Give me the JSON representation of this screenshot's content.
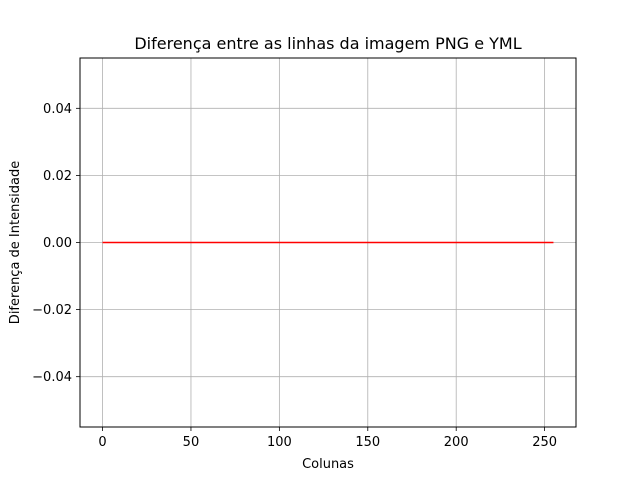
{
  "chart_data": {
    "type": "line",
    "title": "Diferença entre as linhas da imagem PNG e YML",
    "xlabel": "Colunas",
    "ylabel": "Diferença de Intensidade",
    "xlim": [
      -12.75,
      267.75
    ],
    "ylim": [
      -0.055,
      0.055
    ],
    "xticks": [
      0,
      50,
      100,
      150,
      200,
      250
    ],
    "xtick_labels": [
      "0",
      "50",
      "100",
      "150",
      "200",
      "250"
    ],
    "yticks": [
      -0.04,
      -0.02,
      0.0,
      0.02,
      0.04
    ],
    "ytick_labels": [
      "−0.04",
      "−0.02",
      "0.00",
      "0.02",
      "0.04"
    ],
    "grid": true,
    "series": [
      {
        "color": "#ff0000",
        "x": [
          0,
          255
        ],
        "y": [
          0,
          0
        ]
      }
    ]
  }
}
